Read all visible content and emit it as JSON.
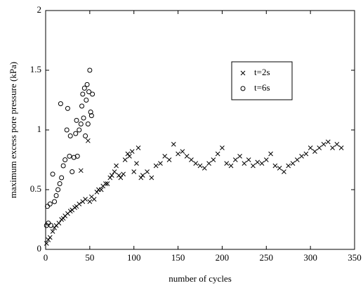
{
  "chart_data": {
    "type": "scatter",
    "xlabel": "number of cycles",
    "ylabel": "maximum excess pore pressure (kPa)",
    "xlim": [
      0,
      350
    ],
    "xticks": [
      0,
      50,
      100,
      150,
      200,
      250,
      300,
      350
    ],
    "ylim": [
      0,
      2
    ],
    "yticks": [
      0,
      0.5,
      1,
      1.5,
      2
    ],
    "series": [
      {
        "name": "t=2s",
        "color": "#000000",
        "marker": "x",
        "x": [
          1,
          3,
          5,
          8,
          10,
          12,
          15,
          18,
          20,
          22,
          25,
          28,
          30,
          33,
          35,
          38,
          40,
          42,
          45,
          48,
          50,
          52,
          55,
          58,
          60,
          63,
          65,
          68,
          70,
          73,
          75,
          78,
          80,
          83,
          85,
          88,
          90,
          93,
          95,
          98,
          100,
          103,
          105,
          108,
          110,
          115,
          120,
          125,
          130,
          135,
          140,
          145,
          150,
          155,
          160,
          165,
          170,
          175,
          180,
          185,
          190,
          195,
          200,
          205,
          210,
          215,
          220,
          225,
          230,
          235,
          240,
          245,
          250,
          255,
          260,
          265,
          270,
          275,
          280,
          285,
          290,
          295,
          300,
          305,
          310,
          315,
          320,
          325,
          330,
          335
        ],
        "values": [
          0.05,
          0.08,
          0.1,
          0.15,
          0.18,
          0.2,
          0.22,
          0.25,
          0.26,
          0.28,
          0.3,
          0.32,
          0.33,
          0.35,
          0.36,
          0.38,
          0.66,
          0.4,
          0.42,
          0.91,
          0.4,
          0.44,
          0.42,
          0.48,
          0.5,
          0.5,
          0.53,
          0.55,
          0.55,
          0.6,
          0.62,
          0.65,
          0.7,
          0.62,
          0.6,
          0.63,
          0.75,
          0.8,
          0.78,
          0.82,
          0.65,
          0.72,
          0.85,
          0.6,
          0.62,
          0.65,
          0.6,
          0.7,
          0.72,
          0.78,
          0.75,
          0.88,
          0.8,
          0.82,
          0.78,
          0.75,
          0.72,
          0.7,
          0.68,
          0.72,
          0.75,
          0.8,
          0.85,
          0.72,
          0.7,
          0.75,
          0.78,
          0.72,
          0.75,
          0.7,
          0.73,
          0.72,
          0.75,
          0.8,
          0.7,
          0.68,
          0.65,
          0.7,
          0.72,
          0.75,
          0.78,
          0.8,
          0.85,
          0.82,
          0.85,
          0.88,
          0.9,
          0.85,
          0.88,
          0.85
        ]
      },
      {
        "name": "t=6s",
        "color": "#000000",
        "marker": "o",
        "x": [
          1,
          2,
          3,
          5,
          6,
          8,
          10,
          12,
          14,
          16,
          17,
          18,
          20,
          22,
          24,
          25,
          27,
          28,
          30,
          32,
          34,
          35,
          36,
          38,
          40,
          41,
          42,
          43,
          44,
          45,
          46,
          47,
          48,
          49,
          50,
          51,
          52,
          53
        ],
        "values": [
          0.2,
          0.36,
          0.22,
          0.38,
          0.2,
          0.63,
          0.4,
          0.45,
          0.5,
          0.55,
          1.22,
          0.6,
          0.7,
          0.75,
          1.0,
          1.18,
          0.78,
          0.95,
          0.65,
          0.77,
          0.97,
          1.08,
          0.78,
          1.0,
          1.05,
          1.2,
          1.3,
          1.1,
          1.35,
          0.95,
          1.25,
          1.38,
          1.05,
          1.32,
          1.5,
          1.15,
          1.12,
          1.3
        ]
      }
    ]
  }
}
